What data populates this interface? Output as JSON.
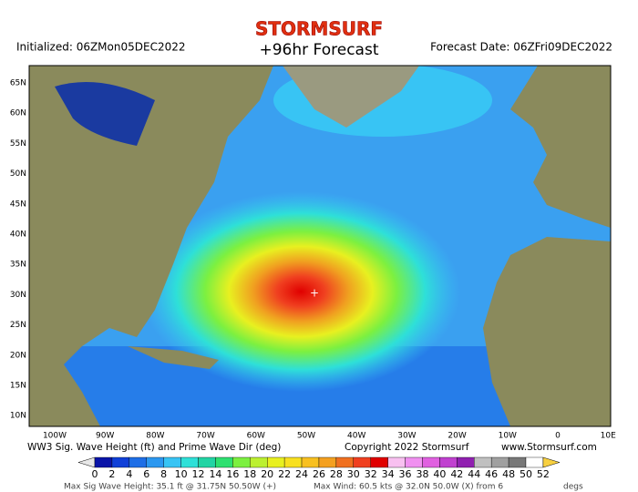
{
  "header": {
    "brand": "STORMSURF",
    "title": "+96hr Forecast",
    "initialized": "Initialized: 06ZMon05DEC2022",
    "forecast_date": "Forecast Date: 06ZFri09DEC2022"
  },
  "map": {
    "lat_labels": [
      "65N",
      "60N",
      "55N",
      "50N",
      "45N",
      "40N",
      "35N",
      "30N",
      "25N",
      "20N",
      "15N",
      "10N"
    ],
    "lon_labels": [
      "100W",
      "90W",
      "80W",
      "70W",
      "60W",
      "50W",
      "40W",
      "30W",
      "20W",
      "10W",
      "0",
      "10E"
    ]
  },
  "footer": {
    "caption": "WW3 Sig. Wave Height (ft) and Prime Wave Dir (deg)",
    "copyright": "Copyright 2022 Stormsurf",
    "url": "www.Stormsurf.com"
  },
  "colorbar": {
    "labels": [
      0,
      2,
      4,
      6,
      8,
      10,
      12,
      14,
      16,
      18,
      20,
      22,
      24,
      26,
      28,
      30,
      32,
      34,
      36,
      38,
      40,
      42,
      44,
      46,
      48,
      50,
      52
    ],
    "colors": [
      "#0a14a8",
      "#1040d8",
      "#1e6ee6",
      "#2c98f0",
      "#38c4f4",
      "#2ee0d8",
      "#22d4a4",
      "#2ee070",
      "#7cf040",
      "#bcf030",
      "#e8f020",
      "#f8e020",
      "#f8c020",
      "#f4a020",
      "#f07020",
      "#f04020",
      "#e00000",
      "#f8c0f0",
      "#f090f0",
      "#e060e0",
      "#c040d0",
      "#9020b0",
      "#c0c0c0",
      "#a0a0a0",
      "#787878",
      "#ffffff"
    ]
  },
  "stats": {
    "max_height": "Max Sig Wave Height: 35.1 ft @ 31.75N 50.50W (+)",
    "max_wind": "Max Wind: 60.5 kts @ 32.0N 50.0W (X) from 6",
    "unit": "degs"
  }
}
